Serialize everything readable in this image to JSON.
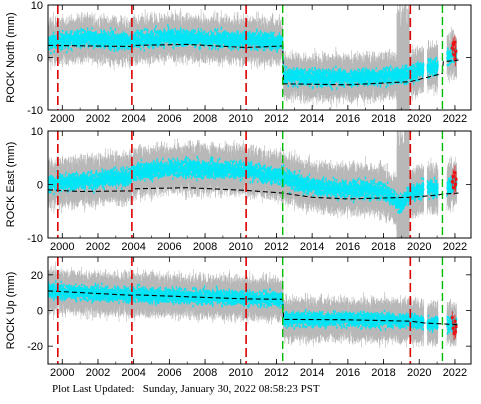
{
  "footer": {
    "label": "Plot Last Updated:",
    "value": "Sunday, January 30, 2022 08:58:23 PST"
  },
  "colors": {
    "errorbar": "#b8b8b8",
    "data": "#00e5f5",
    "model": "#000000",
    "equipment_change": "#dd0000",
    "earthquake": "#00bb00",
    "recent_points": "#ee1111"
  },
  "chart_data": [
    {
      "type": "scatter",
      "title": "",
      "ylabel": "ROCK North (mm)",
      "xlim": [
        1999.2,
        2022.9
      ],
      "ylim": [
        -10,
        10
      ],
      "yticks": [
        -10,
        0,
        10
      ],
      "xticks": [
        2000,
        2002,
        2004,
        2006,
        2008,
        2010,
        2012,
        2014,
        2016,
        2018,
        2020,
        2022
      ],
      "red_breaks": [
        1999.75,
        2003.9,
        2010.3,
        2019.5
      ],
      "green_breaks": [
        2012.35,
        2021.3
      ],
      "model": [
        [
          1999.2,
          2.3
        ],
        [
          2003.9,
          2.1
        ],
        [
          2004.0,
          2.3
        ],
        [
          2007,
          2.5
        ],
        [
          2010.3,
          1.9
        ],
        [
          2012.35,
          2.2
        ],
        [
          2012.4,
          -5.0
        ],
        [
          2016,
          -5.2
        ],
        [
          2019.5,
          -4.6
        ],
        [
          2021.0,
          -3.3
        ],
        [
          2021.3,
          -3.0
        ],
        [
          2021.35,
          -0.8
        ],
        [
          2022.2,
          -0.5
        ]
      ],
      "series_trend": [
        [
          1999.2,
          2.8
        ],
        [
          2001,
          3.6
        ],
        [
          2003.9,
          3.0
        ],
        [
          2004.0,
          3.4
        ],
        [
          2006,
          3.8
        ],
        [
          2008,
          3.5
        ],
        [
          2010.3,
          3.3
        ],
        [
          2012.35,
          3.0
        ],
        [
          2012.4,
          -3.6
        ],
        [
          2014,
          -3.8
        ],
        [
          2016,
          -3.9
        ],
        [
          2018,
          -3.6
        ],
        [
          2019.5,
          -3.2
        ],
        [
          2020.3,
          -2.2
        ],
        [
          2021.0,
          -1.8
        ],
        [
          2021.3,
          -1.4
        ],
        [
          2021.4,
          0.2
        ],
        [
          2022.2,
          0.6
        ]
      ],
      "data_spread": 1.4,
      "error_spread": 3.2,
      "gaps": [
        [
          2020.25,
          2020.45
        ],
        [
          2021.05,
          2021.55
        ]
      ],
      "recent_points": [
        [
          2021.85,
          1.8
        ],
        [
          2021.9,
          2.5
        ],
        [
          2021.95,
          0.5
        ],
        [
          2022.0,
          2.9
        ],
        [
          2022.02,
          -0.4
        ],
        [
          2022.05,
          1.2
        ]
      ]
    },
    {
      "type": "scatter",
      "title": "",
      "ylabel": "ROCK East (mm)",
      "xlim": [
        1999.2,
        2022.9
      ],
      "ylim": [
        -10,
        10
      ],
      "yticks": [
        -10,
        0,
        10
      ],
      "xticks": [
        2000,
        2002,
        2004,
        2006,
        2008,
        2010,
        2012,
        2014,
        2016,
        2018,
        2020,
        2022
      ],
      "red_breaks": [
        1999.75,
        2003.9,
        2010.3,
        2019.5
      ],
      "green_breaks": [
        2012.35,
        2021.3
      ],
      "model": [
        [
          1999.2,
          -1.0
        ],
        [
          2001,
          -1.3
        ],
        [
          2003.9,
          -1.2
        ],
        [
          2004.0,
          -0.8
        ],
        [
          2007,
          -0.6
        ],
        [
          2010.3,
          -1.1
        ],
        [
          2012.35,
          -1.6
        ],
        [
          2014,
          -2.4
        ],
        [
          2016,
          -2.7
        ],
        [
          2019.5,
          -2.4
        ],
        [
          2021.0,
          -2.0
        ],
        [
          2021.3,
          -1.8
        ],
        [
          2022.2,
          -1.6
        ]
      ],
      "series_trend": [
        [
          1999.2,
          0.3
        ],
        [
          2001,
          0.6
        ],
        [
          2003.9,
          1.5
        ],
        [
          2004.0,
          2.3
        ],
        [
          2006,
          3.0
        ],
        [
          2008,
          2.9
        ],
        [
          2010.3,
          2.7
        ],
        [
          2012.35,
          1.3
        ],
        [
          2014,
          -0.4
        ],
        [
          2016,
          -0.9
        ],
        [
          2018,
          -1.1
        ],
        [
          2019.0,
          -3.8
        ],
        [
          2019.5,
          -1.4
        ],
        [
          2020.3,
          -0.9
        ],
        [
          2021.0,
          -0.6
        ],
        [
          2021.3,
          -0.4
        ],
        [
          2022.2,
          0.2
        ]
      ],
      "data_spread": 1.4,
      "error_spread": 3.4,
      "gaps": [
        [
          2020.25,
          2020.45
        ],
        [
          2021.05,
          2021.55
        ]
      ],
      "recent_points": [
        [
          2021.85,
          0.5
        ],
        [
          2021.9,
          1.5
        ],
        [
          2021.95,
          -0.6
        ],
        [
          2022.0,
          2.2
        ],
        [
          2022.03,
          0.0
        ],
        [
          2022.06,
          1.0
        ]
      ]
    },
    {
      "type": "scatter",
      "title": "",
      "ylabel": "ROCK Up (mm)",
      "xlim": [
        1999.2,
        2022.9
      ],
      "ylim": [
        -30,
        30
      ],
      "yticks": [
        -20,
        0,
        20
      ],
      "xticks": [
        2000,
        2002,
        2004,
        2006,
        2008,
        2010,
        2012,
        2014,
        2016,
        2018,
        2020,
        2022
      ],
      "red_breaks": [
        1999.75,
        2003.9,
        2010.3,
        2019.5
      ],
      "green_breaks": [
        2012.35,
        2021.3
      ],
      "model": [
        [
          1999.2,
          11
        ],
        [
          2003.9,
          8.5
        ],
        [
          2004.0,
          8.8
        ],
        [
          2010.3,
          6.5
        ],
        [
          2012.35,
          6.3
        ],
        [
          2012.4,
          -5.0
        ],
        [
          2016,
          -5.2
        ],
        [
          2019.5,
          -6.0
        ],
        [
          2020.3,
          -7.0
        ],
        [
          2021.3,
          -7.5
        ],
        [
          2022.2,
          -8.0
        ]
      ],
      "series_trend": [
        [
          1999.2,
          11
        ],
        [
          2001,
          10
        ],
        [
          2003.9,
          8.5
        ],
        [
          2004.0,
          8.8
        ],
        [
          2007,
          8.0
        ],
        [
          2010.3,
          6.8
        ],
        [
          2012.35,
          6.3
        ],
        [
          2012.4,
          -5.0
        ],
        [
          2016,
          -5.0
        ],
        [
          2019.5,
          -5.8
        ],
        [
          2020.3,
          -6.8
        ],
        [
          2021.3,
          -7.5
        ],
        [
          2022.2,
          -8.0
        ]
      ],
      "data_spread": 3.5,
      "error_spread": 9.0,
      "gaps": [
        [
          2020.25,
          2020.45
        ],
        [
          2021.05,
          2021.55
        ]
      ],
      "recent_points": [
        [
          2021.85,
          -4
        ],
        [
          2021.9,
          -10
        ],
        [
          2021.95,
          -13
        ],
        [
          2022.0,
          -6
        ],
        [
          2022.03,
          -12
        ],
        [
          2022.06,
          -9
        ]
      ]
    }
  ]
}
